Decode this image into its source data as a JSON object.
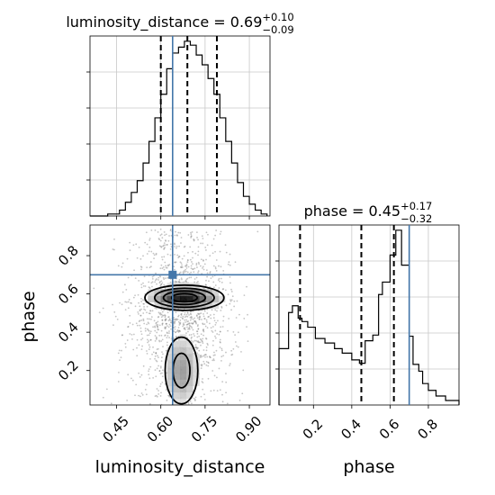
{
  "chart_data": {
    "type": "corner",
    "truth": {
      "luminosity_distance": 0.64,
      "phase": 0.7
    },
    "truth_color": "#4477aa",
    "panels": [
      {
        "id": "hist_luminosity_distance",
        "type": "histogram",
        "parameter": "luminosity_distance",
        "title": {
          "prefix": "luminosity_distance = 0.69",
          "sup": "+0.10",
          "sub": "−0.09"
        },
        "xlim": [
          0.36,
          0.97
        ],
        "quantile_lines": [
          0.6,
          0.69,
          0.79
        ],
        "bin_edges": [
          0.36,
          0.38,
          0.4,
          0.42,
          0.44,
          0.46,
          0.48,
          0.5,
          0.52,
          0.54,
          0.56,
          0.58,
          0.6,
          0.62,
          0.64,
          0.66,
          0.68,
          0.7,
          0.72,
          0.74,
          0.76,
          0.78,
          0.8,
          0.82,
          0.84,
          0.86,
          0.88,
          0.9,
          0.92,
          0.94,
          0.96
        ],
        "counts": [
          0,
          0,
          0,
          1,
          1,
          3,
          7,
          12,
          18,
          27,
          38,
          50,
          62,
          75,
          83,
          86,
          89,
          87,
          82,
          77,
          70,
          62,
          50,
          38,
          27,
          17,
          10,
          6,
          3,
          1
        ]
      },
      {
        "id": "hist_phase",
        "type": "histogram",
        "parameter": "phase",
        "title": {
          "prefix": "phase = 0.45",
          "sup": "+0.17",
          "sub": "−0.32"
        },
        "xlim": [
          0.02,
          0.96
        ],
        "xticks": [
          0.2,
          0.4,
          0.6,
          0.8
        ],
        "xlabel": "phase",
        "quantile_lines": [
          0.13,
          0.45,
          0.62
        ],
        "bin_edges": [
          0.02,
          0.07,
          0.09,
          0.12,
          0.14,
          0.17,
          0.21,
          0.26,
          0.31,
          0.35,
          0.4,
          0.44,
          0.47,
          0.51,
          0.54,
          0.56,
          0.6,
          0.63,
          0.66,
          0.7,
          0.72,
          0.75,
          0.77,
          0.8,
          0.84,
          0.89,
          0.96
        ],
        "counts": [
          50,
          82,
          88,
          77,
          74,
          69,
          59,
          55,
          50,
          46,
          40,
          37,
          57,
          62,
          98,
          109,
          133,
          155,
          124,
          61,
          36,
          30,
          19,
          13,
          8,
          4
        ]
      },
      {
        "id": "joint_luminosity_distance_phase",
        "type": "2d-density",
        "x_param": "luminosity_distance",
        "y_param": "phase",
        "xlabel": "luminosity_distance",
        "ylabel": "phase",
        "xlim": [
          0.36,
          0.97
        ],
        "ylim": [
          0.02,
          0.96
        ],
        "xticks": [
          0.45,
          0.6,
          0.75,
          0.9
        ],
        "yticks": [
          0.2,
          0.4,
          0.6,
          0.8
        ],
        "contour_levels": 4,
        "modes": [
          {
            "x": 0.68,
            "y": 0.58,
            "sx": 0.065,
            "sy": 0.032,
            "w": 1.0
          },
          {
            "x": 0.67,
            "y": 0.2,
            "sx": 0.035,
            "sy": 0.11,
            "w": 0.42
          }
        ]
      }
    ]
  }
}
